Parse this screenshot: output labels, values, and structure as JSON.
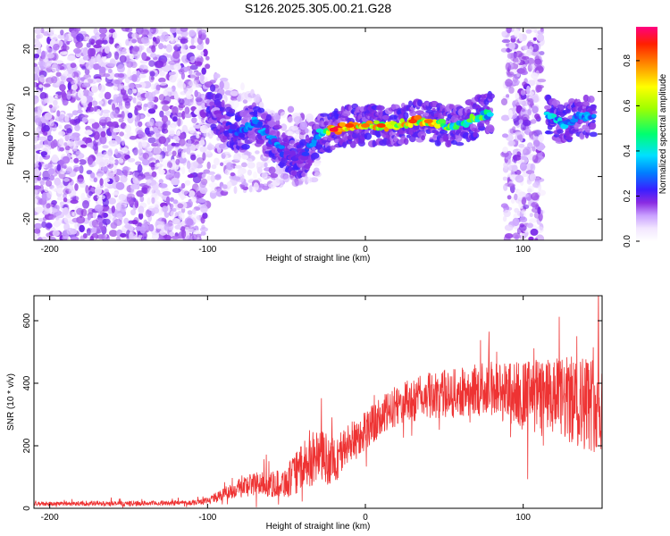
{
  "title": "S126.2025.305.00.21.G28",
  "chart_data": [
    {
      "type": "heatmap",
      "title": "S126.2025.305.00.21.G28",
      "xlabel": "Height of straight line (km)",
      "ylabel": "Frequency (Hz)",
      "xlim": [
        -210,
        150
      ],
      "ylim": [
        -25,
        25
      ],
      "xticks": [
        -200,
        -100,
        0,
        100
      ],
      "yticks": [
        -20,
        -10,
        0,
        10,
        20
      ],
      "colorbar": {
        "label": "Normalized spectral amplitude",
        "range": [
          0.0,
          0.95
        ],
        "ticks": [
          0.0,
          0.2,
          0.4,
          0.6,
          0.8
        ]
      },
      "regions": [
        {
          "name": "noise",
          "x_range": [
            -210,
            -100
          ],
          "f_range": [
            -25,
            25
          ],
          "amplitude": 0.12
        },
        {
          "name": "noise",
          "x_range": [
            88,
            112
          ],
          "f_range": [
            -25,
            25
          ],
          "amplitude": 0.12
        },
        {
          "name": "noise-tail",
          "x_range": [
            -100,
            -30
          ],
          "f_range": [
            -15,
            15
          ],
          "amplitude": 0.1
        }
      ],
      "ridge": [
        {
          "x": -100,
          "f": 8,
          "amp": 0.15
        },
        {
          "x": -90,
          "f": 3,
          "amp": 0.2
        },
        {
          "x": -80,
          "f": 0,
          "amp": 0.3
        },
        {
          "x": -70,
          "f": 3,
          "amp": 0.35
        },
        {
          "x": -60,
          "f": -1,
          "amp": 0.35
        },
        {
          "x": -50,
          "f": -5,
          "amp": 0.3
        },
        {
          "x": -40,
          "f": -6,
          "amp": 0.25
        },
        {
          "x": -30,
          "f": 0,
          "amp": 0.35
        },
        {
          "x": -20,
          "f": 1,
          "amp": 0.9
        },
        {
          "x": -10,
          "f": 2,
          "amp": 0.85
        },
        {
          "x": 0,
          "f": 2,
          "amp": 0.8
        },
        {
          "x": 10,
          "f": 2,
          "amp": 0.85
        },
        {
          "x": 20,
          "f": 2,
          "amp": 0.7
        },
        {
          "x": 30,
          "f": 3,
          "amp": 0.85
        },
        {
          "x": 40,
          "f": 3,
          "amp": 0.8
        },
        {
          "x": 50,
          "f": 2,
          "amp": 0.6
        },
        {
          "x": 60,
          "f": 2,
          "amp": 0.5
        },
        {
          "x": 70,
          "f": 4,
          "amp": 0.6
        },
        {
          "x": 80,
          "f": 5,
          "amp": 0.45
        },
        {
          "x": 115,
          "f": 5,
          "amp": 0.4
        },
        {
          "x": 125,
          "f": 2,
          "amp": 0.45
        },
        {
          "x": 135,
          "f": 4,
          "amp": 0.4
        },
        {
          "x": 145,
          "f": 4,
          "amp": 0.35
        }
      ]
    },
    {
      "type": "line",
      "xlabel": "Height of straight line (km)",
      "ylabel": "SNR (10 * v/v)",
      "xlim": [
        -210,
        150
      ],
      "ylim": [
        0,
        680
      ],
      "xticks": [
        -200,
        -100,
        0,
        100
      ],
      "yticks": [
        0,
        200,
        400,
        600
      ],
      "series": [
        {
          "name": "SNR",
          "color": "#ee3333",
          "envelope": [
            {
              "x": -210,
              "mean": 15,
              "noise": 5
            },
            {
              "x": -150,
              "mean": 15,
              "noise": 6
            },
            {
              "x": -110,
              "mean": 18,
              "noise": 6
            },
            {
              "x": -100,
              "mean": 25,
              "noise": 8
            },
            {
              "x": -90,
              "mean": 45,
              "noise": 15
            },
            {
              "x": -80,
              "mean": 65,
              "noise": 25
            },
            {
              "x": -70,
              "mean": 80,
              "noise": 30
            },
            {
              "x": -60,
              "mean": 75,
              "noise": 30
            },
            {
              "x": -50,
              "mean": 85,
              "noise": 40
            },
            {
              "x": -40,
              "mean": 130,
              "noise": 60
            },
            {
              "x": -30,
              "mean": 170,
              "noise": 70
            },
            {
              "x": -20,
              "mean": 150,
              "noise": 60
            },
            {
              "x": -10,
              "mean": 210,
              "noise": 50
            },
            {
              "x": 0,
              "mean": 250,
              "noise": 50
            },
            {
              "x": 10,
              "mean": 290,
              "noise": 50
            },
            {
              "x": 20,
              "mean": 330,
              "noise": 50
            },
            {
              "x": 30,
              "mean": 345,
              "noise": 55
            },
            {
              "x": 40,
              "mean": 360,
              "noise": 55
            },
            {
              "x": 50,
              "mean": 365,
              "noise": 60
            },
            {
              "x": 60,
              "mean": 370,
              "noise": 60
            },
            {
              "x": 70,
              "mean": 380,
              "noise": 65
            },
            {
              "x": 80,
              "mean": 385,
              "noise": 70
            },
            {
              "x": 90,
              "mean": 370,
              "noise": 80
            },
            {
              "x": 100,
              "mean": 365,
              "noise": 85
            },
            {
              "x": 110,
              "mean": 360,
              "noise": 90
            },
            {
              "x": 120,
              "mean": 350,
              "noise": 100
            },
            {
              "x": 130,
              "mean": 345,
              "noise": 110
            },
            {
              "x": 140,
              "mean": 340,
              "noise": 120
            },
            {
              "x": 150,
              "mean": 330,
              "noise": 120
            }
          ]
        }
      ]
    }
  ]
}
